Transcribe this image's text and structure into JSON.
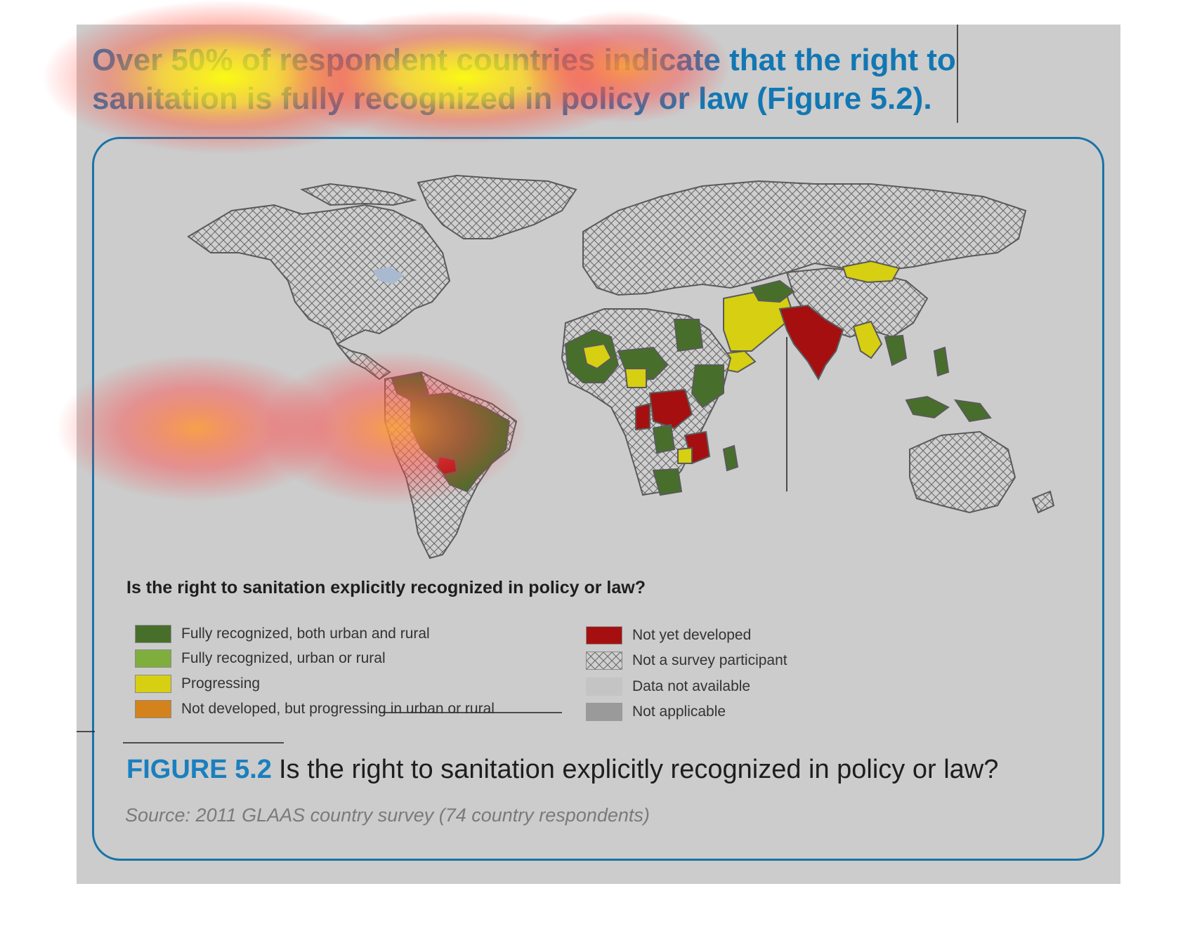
{
  "headline": "Over 50% of respondent countries indicate that the right to sanitation is fully recognized in policy or law (Figure 5.2).",
  "legend": {
    "title": "Is the right to sanitation explicitly recognized in policy or law?",
    "items": [
      {
        "label": "Fully recognized, both urban and rural",
        "color": "#476f2b",
        "pattern": "solid"
      },
      {
        "label": "Fully recognized, urban or rural",
        "color": "#7fae3d",
        "pattern": "solid"
      },
      {
        "label": "Progressing",
        "color": "#d6cf12",
        "pattern": "solid"
      },
      {
        "label": "Not developed, but progressing in urban or rural",
        "color": "#d4821c",
        "pattern": "solid"
      },
      {
        "label": "Not yet developed",
        "color": "#a50f0f",
        "pattern": "solid"
      },
      {
        "label": "Not a survey participant",
        "color": "#cccccc",
        "pattern": "crosshatch"
      },
      {
        "label": "Data not available",
        "color": "#c4c4c4",
        "pattern": "solid"
      },
      {
        "label": "Not applicable",
        "color": "#9a9a9a",
        "pattern": "solid"
      }
    ]
  },
  "figure": {
    "number": "FIGURE 5.2",
    "caption": "Is the right to sanitation explicitly recognized in policy or law?",
    "source": "Source: 2011 GLAAS country survey (74 country respondents)"
  },
  "colors": {
    "accent": "#1277b3",
    "frame": "#1a73a8",
    "panel": "#cccccc"
  }
}
